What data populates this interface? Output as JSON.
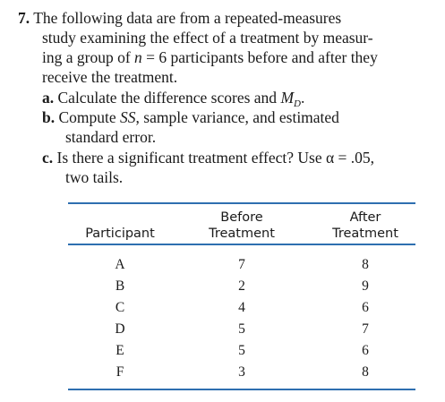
{
  "problem": {
    "number": "7.",
    "intro_lines": [
      "The following data are from a repeated-measures",
      "study examining the effect of a treatment by measur-",
      "ing a group of ",
      "receive the treatment."
    ],
    "n_var": "n",
    "n_eq": " = 6 participants before and after they",
    "parts": {
      "a": {
        "label": "a.",
        "text": "Calculate the difference scores and ",
        "m_var": "M",
        "m_sub": "D",
        "m_end": "."
      },
      "b": {
        "label": "b.",
        "text_pre": "Compute ",
        "ss": "SS",
        "text_post": ", sample variance, and estimated",
        "text_line2": "standard error."
      },
      "c": {
        "label": "c.",
        "text_line1": "Is there a significant treatment effect? Use α = .05,",
        "text_line2": "two tails."
      }
    }
  },
  "table": {
    "headers": {
      "participant": "Participant",
      "before_line1": "Before",
      "before_line2": "Treatment",
      "after_line1": "After",
      "after_line2": "Treatment"
    },
    "rows": [
      {
        "participant": "A",
        "before": "7",
        "after": "8"
      },
      {
        "participant": "B",
        "before": "2",
        "after": "9"
      },
      {
        "participant": "C",
        "before": "4",
        "after": "6"
      },
      {
        "participant": "D",
        "before": "5",
        "after": "7"
      },
      {
        "participant": "E",
        "before": "5",
        "after": "6"
      },
      {
        "participant": "F",
        "before": "3",
        "after": "8"
      }
    ],
    "rule_color": "#2e6fb0"
  }
}
